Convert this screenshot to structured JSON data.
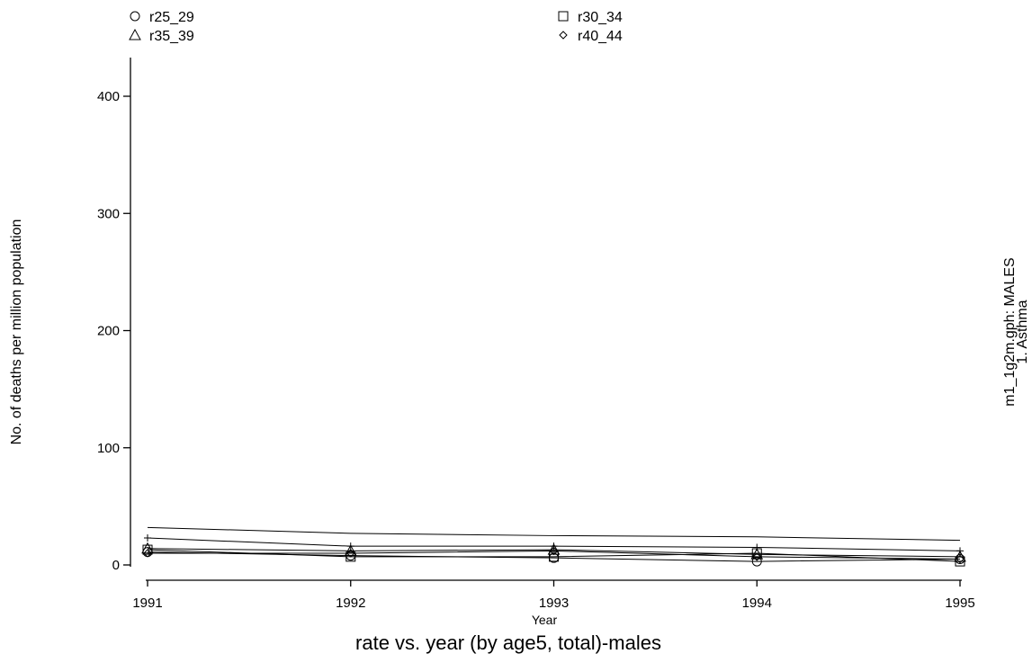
{
  "chart_data": {
    "type": "line",
    "title": "rate vs. year (by age5, total)-males",
    "xlabel": "Year",
    "ylabel": "No. of deaths per million population",
    "side_note_line1": "m1_1g2m.gph: MALES",
    "side_note_line2": "1.  Asthma",
    "x": [
      1991,
      1992,
      1993,
      1994,
      1995
    ],
    "xlim": [
      1991,
      1995
    ],
    "ylim": [
      0,
      400
    ],
    "y_ticks": [
      0,
      100,
      200,
      300,
      400
    ],
    "grid": false,
    "legend_position": "top",
    "series": [
      {
        "name": "r25_29",
        "marker": "circle",
        "values": [
          11,
          8,
          6,
          3,
          5
        ]
      },
      {
        "name": "r30_34",
        "marker": "square",
        "values": [
          13,
          7,
          7,
          10,
          3
        ]
      },
      {
        "name": "r35_39",
        "marker": "triangle",
        "values": [
          14,
          12,
          13,
          9,
          7
        ]
      },
      {
        "name": "r40_44",
        "marker": "diamond",
        "values": [
          10,
          10,
          12,
          7,
          5
        ]
      },
      {
        "name": "",
        "marker": "plus",
        "values": [
          23,
          16,
          16,
          15,
          12
        ]
      },
      {
        "name": "",
        "marker": "none",
        "values": [
          32,
          27,
          25,
          24,
          21
        ]
      }
    ]
  }
}
